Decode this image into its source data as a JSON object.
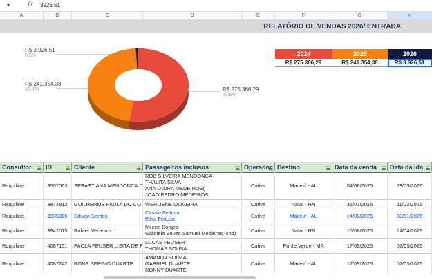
{
  "formula_bar": {
    "cell_ref": "▾",
    "fx": "fx",
    "value": "3926,51"
  },
  "columns": [
    "A",
    "B",
    "C",
    "D",
    "E",
    "F",
    "G",
    "H"
  ],
  "report_title": "RELATÓRIO DE VENDAS 2026/ ENTRADA",
  "years": [
    {
      "year": "2024",
      "value": "R$ 275.366,29",
      "color": "#e84a3c"
    },
    {
      "year": "2025",
      "value": "R$ 241.354,38",
      "color": "#f7820f"
    },
    {
      "year": "2026",
      "value": "R$ 3.926,51",
      "color": "#0f1a3c"
    }
  ],
  "chart_data": {
    "type": "pie",
    "variant": "donut-3d",
    "slices": [
      {
        "label": "R$ 275.366,29",
        "percent_label": "52,9%",
        "value": 275366.29,
        "percent": 52.9,
        "color": "#e84a3c"
      },
      {
        "label": "R$ 241.354,38",
        "percent_label": "46,4%",
        "value": 241354.38,
        "percent": 46.4,
        "color": "#f7820f"
      },
      {
        "label": "R$ 3.926,51",
        "percent_label": "0,8%",
        "value": 3926.51,
        "percent": 0.8,
        "color": "#0f1a3c"
      }
    ]
  },
  "table": {
    "headers": [
      "Consultor",
      "ID",
      "Cliente",
      "Passageiros inclusos",
      "Operador",
      "Destino",
      "Data da venda",
      "Data da ida"
    ],
    "rows": [
      {
        "consultor": "Raquiline",
        "id": "3597063",
        "cliente": "SEBASTIANA MENDONCA DA",
        "pax": [
          "ROB SILVEIRA MENDONCA",
          "THALITA SILVA",
          "ANA LAURA MEDEIROS(",
          "JOAO PEDRO MEDEIROS"
        ],
        "operador": "Cativa",
        "destino": "Maceió - AL",
        "venda": "04/06/2025",
        "ida": "28/03/2026",
        "blue": false
      },
      {
        "consultor": "Raquiline",
        "id": "3874812",
        "cliente": "GUILHERME PAULA DO CO",
        "pax": [
          "WERLIENE OLIVEIRA"
        ],
        "operador": "Cativa",
        "destino": "Natal - RN",
        "venda": "31/07/2025",
        "ida": "11/03/2026",
        "blue": false
      },
      {
        "consultor": "Raquiline",
        "id": "3935985",
        "cliente": "Edivan Santos",
        "pax": [
          "Cassia Feitosa",
          "Elisa Feitosa"
        ],
        "operador": "Cativa",
        "destino": "Maceió - AL",
        "venda": "14/08/2025",
        "ida": "30/01/2026",
        "blue": true
      },
      {
        "consultor": "Raquiline",
        "id": "3942015",
        "cliente": "Rafael Medeiros",
        "pax": [
          "Milene Borges",
          "Gabriela Souza Samuel Medeiros (chd)"
        ],
        "operador": "Cativa",
        "destino": "Natal - RN",
        "venda": "15/08/2025",
        "ida": "14/04/2026",
        "blue": false
      },
      {
        "consultor": "Raquiline",
        "id": "4087151",
        "cliente": "PAOLA FEUSER LISITA DE F",
        "pax": [
          "LUCAS FEUSER",
          "THOMAS SOUSA"
        ],
        "operador": "Cativa",
        "destino": "Ponte Verde - MA",
        "venda": "17/09/2025",
        "ida": "02/05/2026",
        "blue": false
      },
      {
        "consultor": "Raquiline",
        "id": "4087242",
        "cliente": "RONE SERGIO DUARTE",
        "pax": [
          "AMANDA SOUZA",
          "GABRIEL DUARTE",
          "RONNY DUARTE"
        ],
        "operador": "Cativa",
        "destino": "Maceió - AL",
        "venda": "17/09/2025",
        "ida": "02/05/2026",
        "blue": false
      }
    ]
  }
}
